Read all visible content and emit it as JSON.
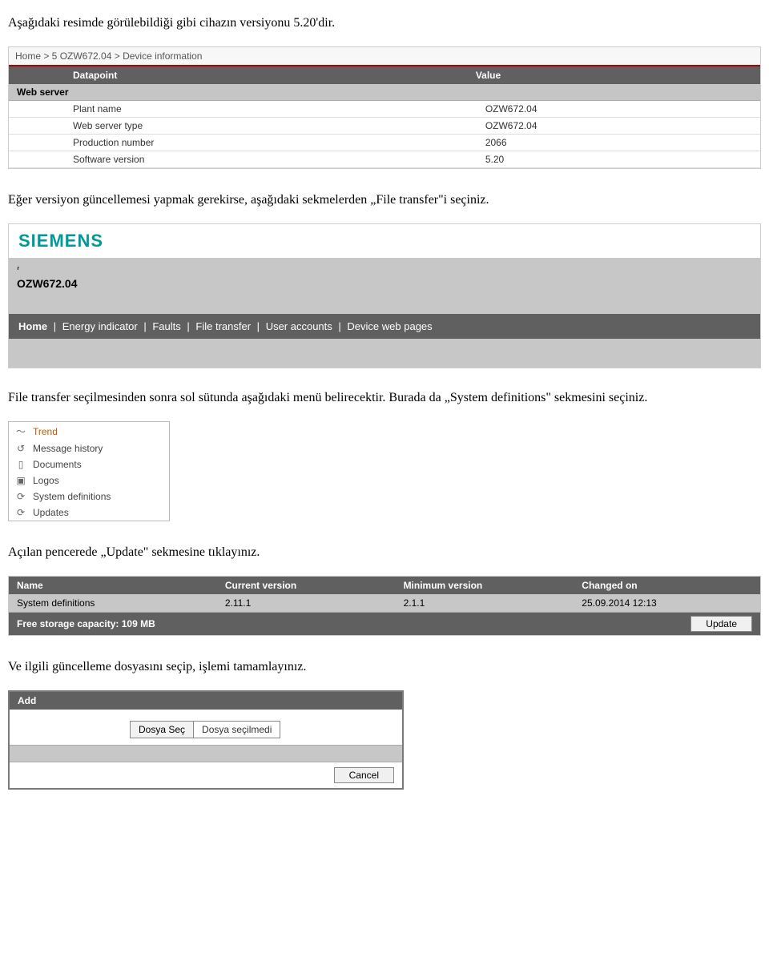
{
  "intro": {
    "p1": "Aşağıdaki resimde görülebildiği gibi cihazın versiyonu 5.20'dir.",
    "p2": "Eğer versiyon güncellemesi yapmak gerekirse, aşağıdaki sekmelerden „File transfer\"i seçiniz.",
    "p3": "File transfer seçilmesinden sonra sol sütunda aşağıdaki menü belirecektir. Burada da „System definitions\" sekmesini seçiniz.",
    "p4": "Açılan pencerede „Update\" sekmesine tıklayınız.",
    "p5": "Ve ilgili güncelleme dosyasını seçip, işlemi tamamlayınız."
  },
  "scr1": {
    "breadcrumb": "Home > 5 OZW672.04 > Device information",
    "col_datapoint": "Datapoint",
    "col_value": "Value",
    "section": "Web server",
    "rows": [
      {
        "label": "Plant name",
        "value": "OZW672.04"
      },
      {
        "label": "Web server type",
        "value": "OZW672.04"
      },
      {
        "label": "Production number",
        "value": "2066"
      },
      {
        "label": "Software version",
        "value": "5.20"
      }
    ]
  },
  "scr2": {
    "logo": "SIEMENS",
    "device": "OZW672.04",
    "nav": [
      "Home",
      "Energy indicator",
      "Faults",
      "File transfer",
      "User accounts",
      "Device web pages"
    ]
  },
  "scr3": {
    "items": [
      {
        "icon": "〜",
        "label": "Trend"
      },
      {
        "icon": "↺",
        "label": "Message history"
      },
      {
        "icon": "▯",
        "label": "Documents"
      },
      {
        "icon": "▣",
        "label": "Logos"
      },
      {
        "icon": "⟳",
        "label": "System definitions"
      },
      {
        "icon": "⟳",
        "label": "Updates"
      }
    ]
  },
  "scr4": {
    "h_name": "Name",
    "h_cur": "Current version",
    "h_min": "Minimum version",
    "h_chg": "Changed on",
    "row": {
      "name": "System definitions",
      "cur": "2.11.1",
      "min": "2.1.1",
      "chg": "25.09.2014 12:13"
    },
    "footer": "Free storage capacity: 109 MB",
    "update_btn": "Update"
  },
  "scr5": {
    "title": "Add",
    "choose": "Dosya Seç",
    "nofile": "Dosya seçilmedi",
    "cancel": "Cancel"
  }
}
